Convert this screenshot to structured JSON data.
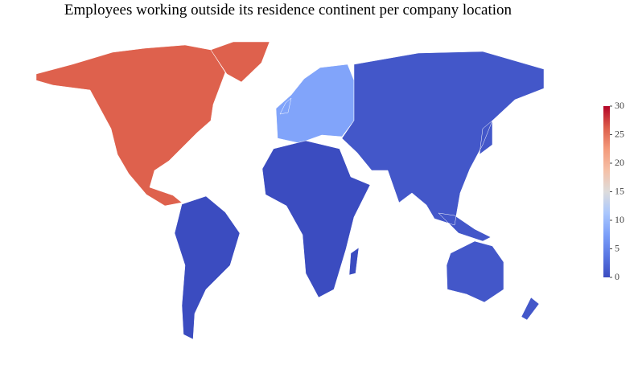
{
  "chart_data": {
    "type": "choropleth",
    "title": "Employees working outside its residence continent per company location",
    "categories": [
      null,
      null,
      null,
      null,
      null,
      null
    ],
    "values": [
      26,
      8,
      1,
      0,
      0,
      1
    ],
    "colorscale": [
      "#3b4cc0",
      "#5977e3",
      "#7b9ff9",
      "#aac7fd",
      "#dddcdc",
      "#f5c0a7",
      "#f49a7b",
      "#dc5d4a",
      "#b40426"
    ],
    "clim": [
      0,
      30
    ],
    "cticks": [
      0,
      5,
      10,
      15,
      20,
      25,
      30
    ]
  }
}
